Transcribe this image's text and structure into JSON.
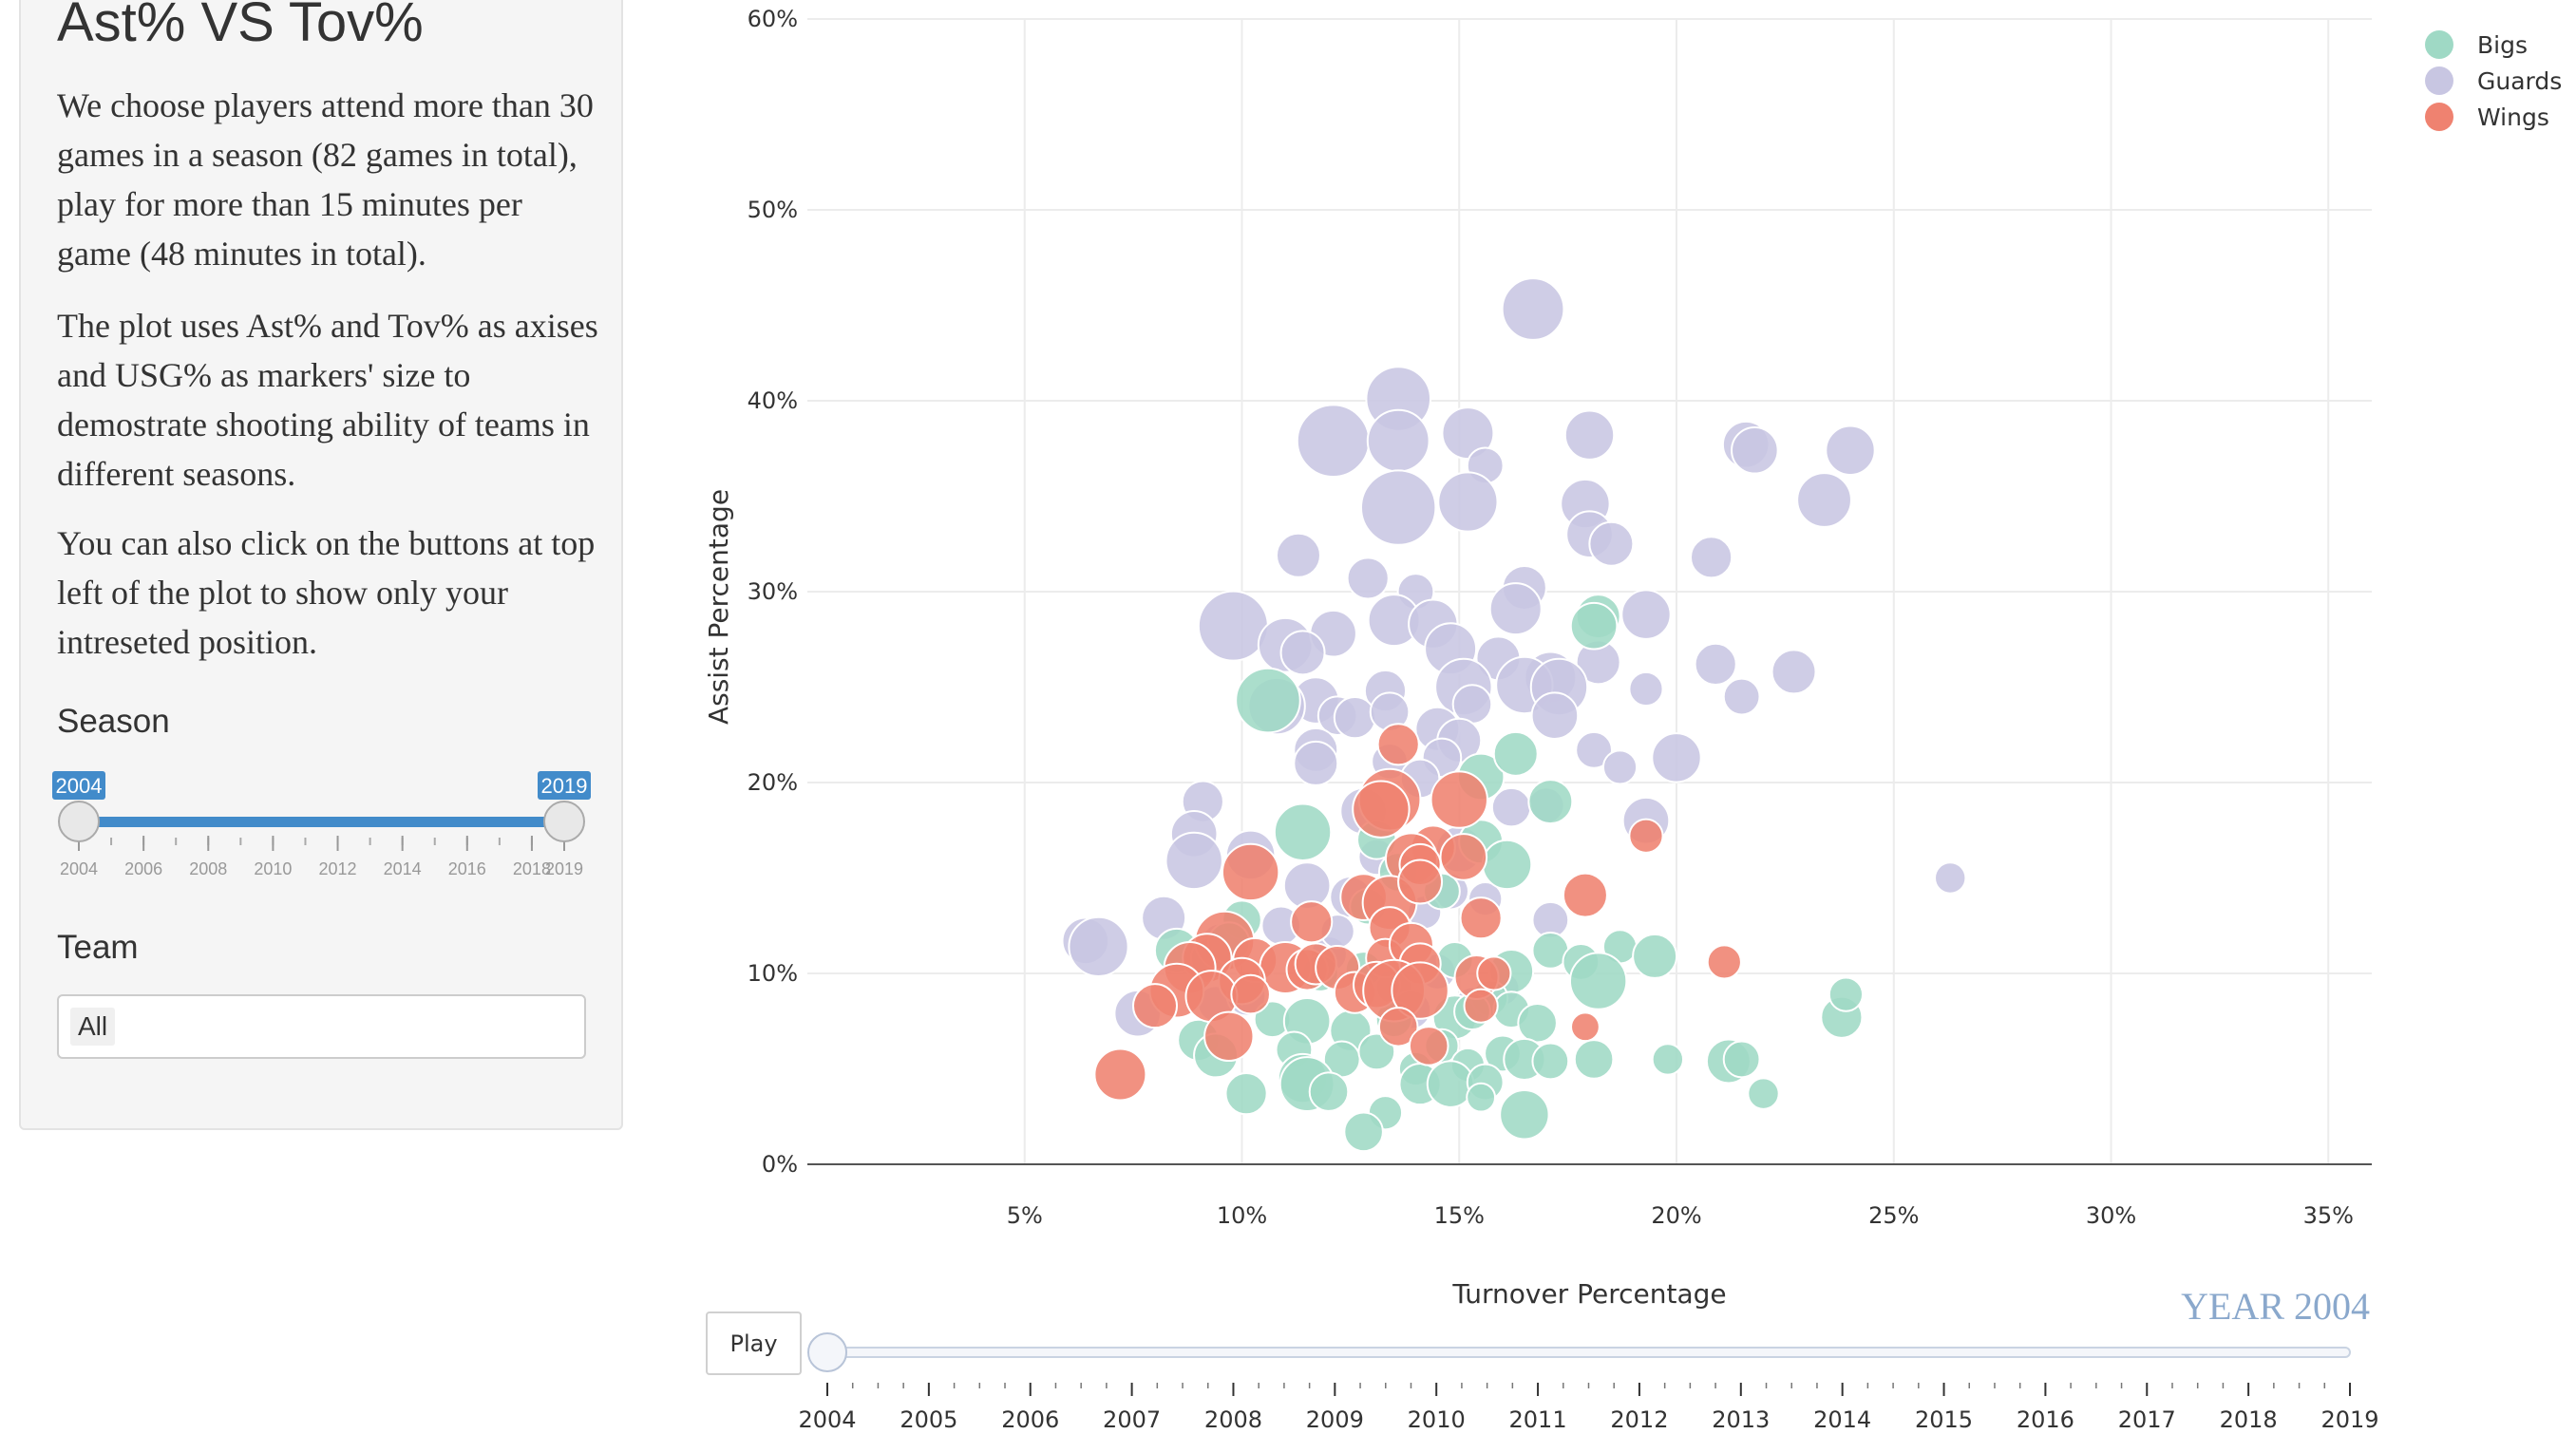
{
  "sidebar": {
    "title": "Ast% VS Tov%",
    "paragraphs": [
      "We choose players attend more than 30 games in a season (82 games in total), play for more than 15 minutes per game (48 minutes in total).",
      "The plot uses Ast% and Tov% as axises and USG% as markers' size to demostrate shooting ability of teams in different seasons.",
      "You can also click on the buttons at top left of the plot to show only your intreseted position."
    ],
    "season_label": "Season",
    "season_range": {
      "min": 2004,
      "max": 2019,
      "from": 2004,
      "to": 2019,
      "from_label": "2004",
      "to_label": "2019",
      "ticks": [
        "2004",
        "2006",
        "2008",
        "2010",
        "2012",
        "2014",
        "2016",
        "2018",
        "2019"
      ]
    },
    "team_label": "Team",
    "team_value": "All"
  },
  "colors": {
    "Bigs": "#9fd9c5",
    "Guards": "#c8c6e2",
    "Wings": "#ef8270",
    "slider": "#428bca",
    "year": "#8aa8cc"
  },
  "chart_data": {
    "type": "scatter",
    "xlabel": "Turnover Percentage",
    "ylabel": "Assist Percentage",
    "xlim": [
      0,
      36
    ],
    "ylim": [
      0,
      60
    ],
    "x_ticks": [
      "5%",
      "10%",
      "15%",
      "20%",
      "25%",
      "30%",
      "35%"
    ],
    "y_ticks": [
      "0%",
      "10%",
      "20%",
      "30%",
      "40%",
      "50%",
      "60%"
    ],
    "legend": [
      "Bigs",
      "Guards",
      "Wings"
    ],
    "legend_position": "top-right",
    "grid": true,
    "size_encodes": "USG%",
    "series": [
      {
        "name": "Guards",
        "points": [
          [
            16.7,
            44.8,
            24
          ],
          [
            13.6,
            40.1,
            25
          ],
          [
            12.1,
            37.9,
            28
          ],
          [
            13.6,
            37.9,
            24
          ],
          [
            15.2,
            38.3,
            20
          ],
          [
            18.0,
            38.2,
            19
          ],
          [
            21.6,
            37.7,
            18
          ],
          [
            21.8,
            37.4,
            18
          ],
          [
            24.0,
            37.4,
            19
          ],
          [
            15.6,
            36.6,
            14
          ],
          [
            13.6,
            34.4,
            29
          ],
          [
            15.2,
            34.7,
            23
          ],
          [
            17.9,
            34.6,
            19
          ],
          [
            23.4,
            34.8,
            21
          ],
          [
            18.0,
            33.0,
            18
          ],
          [
            18.5,
            32.5,
            17
          ],
          [
            11.3,
            31.9,
            17
          ],
          [
            20.8,
            31.8,
            16
          ],
          [
            14.0,
            30.0,
            14
          ],
          [
            12.9,
            30.7,
            16
          ],
          [
            16.5,
            30.2,
            17
          ],
          [
            16.3,
            29.1,
            20
          ],
          [
            19.3,
            28.8,
            19
          ],
          [
            9.8,
            28.2,
            27
          ],
          [
            11.0,
            27.2,
            21
          ],
          [
            12.1,
            27.8,
            18
          ],
          [
            13.5,
            28.5,
            20
          ],
          [
            14.4,
            28.3,
            19
          ],
          [
            15.9,
            26.5,
            17
          ],
          [
            14.8,
            27.0,
            20
          ],
          [
            11.4,
            26.8,
            17
          ],
          [
            18.2,
            26.3,
            17
          ],
          [
            20.9,
            26.2,
            16
          ],
          [
            22.7,
            25.8,
            17
          ],
          [
            17.1,
            25.5,
            20
          ],
          [
            16.5,
            25.1,
            22
          ],
          [
            15.1,
            25.0,
            22
          ],
          [
            17.3,
            25.0,
            22
          ],
          [
            19.3,
            24.9,
            13
          ],
          [
            21.5,
            24.5,
            14
          ],
          [
            13.3,
            24.8,
            16
          ],
          [
            11.7,
            24.3,
            18
          ],
          [
            10.8,
            24.0,
            22
          ],
          [
            12.2,
            23.5,
            15
          ],
          [
            12.6,
            23.4,
            16
          ],
          [
            13.4,
            23.7,
            15
          ],
          [
            15.3,
            24.1,
            15
          ],
          [
            17.2,
            23.5,
            18
          ],
          [
            14.5,
            22.8,
            17
          ],
          [
            15.0,
            22.2,
            17
          ],
          [
            11.7,
            21.7,
            17
          ],
          [
            11.7,
            21.0,
            17
          ],
          [
            18.1,
            21.7,
            14
          ],
          [
            18.7,
            20.8,
            13
          ],
          [
            20.0,
            21.3,
            19
          ],
          [
            13.4,
            21.1,
            14
          ],
          [
            14.6,
            21.3,
            15
          ],
          [
            14.1,
            20.2,
            15
          ],
          [
            17.0,
            18.8,
            14
          ],
          [
            16.2,
            18.7,
            15
          ],
          [
            19.3,
            18.0,
            18
          ],
          [
            9.1,
            19.0,
            16
          ],
          [
            8.9,
            17.3,
            18
          ],
          [
            8.9,
            15.9,
            22
          ],
          [
            10.2,
            16.2,
            19
          ],
          [
            12.8,
            18.5,
            18
          ],
          [
            13.1,
            16.1,
            14
          ],
          [
            15.0,
            16.5,
            18
          ],
          [
            11.5,
            14.6,
            18
          ],
          [
            12.5,
            14.0,
            16
          ],
          [
            14.8,
            14.3,
            14
          ],
          [
            15.6,
            13.9,
            13
          ],
          [
            8.2,
            12.9,
            17
          ],
          [
            10.9,
            12.5,
            15
          ],
          [
            6.4,
            11.7,
            18
          ],
          [
            6.7,
            11.4,
            23
          ],
          [
            9.5,
            11.6,
            15
          ],
          [
            12.0,
            11.0,
            14
          ],
          [
            17.1,
            12.8,
            14
          ],
          [
            26.3,
            15.0,
            12
          ],
          [
            7.6,
            7.9,
            18
          ],
          [
            9.4,
            8.4,
            14
          ],
          [
            10.1,
            8.8,
            15
          ],
          [
            13.5,
            9.3,
            14
          ],
          [
            13.9,
            8.1,
            15
          ],
          [
            14.5,
            10.1,
            14
          ],
          [
            15.3,
            8.4,
            13
          ],
          [
            16.0,
            9.2,
            13
          ],
          [
            12.2,
            12.2,
            13
          ],
          [
            14.2,
            13.2,
            13
          ]
        ]
      },
      {
        "name": "Bigs",
        "points": [
          [
            18.2,
            28.7,
            17
          ],
          [
            18.1,
            28.2,
            18
          ],
          [
            10.6,
            24.3,
            25
          ],
          [
            15.5,
            20.3,
            18
          ],
          [
            16.3,
            21.5,
            17
          ],
          [
            17.1,
            19.0,
            17
          ],
          [
            11.4,
            17.4,
            22
          ],
          [
            13.1,
            17.0,
            15
          ],
          [
            15.5,
            16.9,
            17
          ],
          [
            16.1,
            15.7,
            19
          ],
          [
            13.6,
            15.3,
            15
          ],
          [
            14.6,
            14.3,
            14
          ],
          [
            12.9,
            13.5,
            14
          ],
          [
            10.0,
            12.8,
            15
          ],
          [
            8.5,
            11.2,
            17
          ],
          [
            9.3,
            10.8,
            16
          ],
          [
            9.7,
            11.6,
            16
          ],
          [
            11.8,
            10.0,
            14
          ],
          [
            12.8,
            10.2,
            14
          ],
          [
            14.9,
            10.7,
            14
          ],
          [
            16.2,
            10.1,
            17
          ],
          [
            17.1,
            11.2,
            14
          ],
          [
            17.8,
            10.6,
            14
          ],
          [
            18.7,
            11.4,
            13
          ],
          [
            18.2,
            9.6,
            22
          ],
          [
            19.5,
            10.9,
            17
          ],
          [
            15.7,
            8.7,
            14
          ],
          [
            16.2,
            8.1,
            14
          ],
          [
            13.5,
            7.6,
            14
          ],
          [
            14.9,
            7.7,
            17
          ],
          [
            15.3,
            8.0,
            14
          ],
          [
            16.8,
            7.4,
            15
          ],
          [
            10.7,
            7.6,
            14
          ],
          [
            11.5,
            7.5,
            18
          ],
          [
            12.5,
            7.0,
            16
          ],
          [
            9.0,
            6.5,
            16
          ],
          [
            9.4,
            5.7,
            17
          ],
          [
            11.2,
            6.0,
            14
          ],
          [
            12.3,
            5.5,
            14
          ],
          [
            13.1,
            5.9,
            14
          ],
          [
            14.0,
            5.0,
            13
          ],
          [
            14.6,
            6.2,
            13
          ],
          [
            15.2,
            5.2,
            13
          ],
          [
            16.0,
            5.8,
            14
          ],
          [
            16.5,
            5.5,
            16
          ],
          [
            17.1,
            5.4,
            14
          ],
          [
            18.1,
            5.5,
            15
          ],
          [
            11.4,
            4.5,
            19
          ],
          [
            11.5,
            4.2,
            21
          ],
          [
            12.0,
            3.8,
            15
          ],
          [
            10.1,
            3.7,
            16
          ],
          [
            14.1,
            4.2,
            16
          ],
          [
            14.8,
            4.2,
            18
          ],
          [
            15.6,
            4.3,
            14
          ],
          [
            15.5,
            3.5,
            11
          ],
          [
            13.3,
            2.7,
            13
          ],
          [
            12.8,
            1.7,
            15
          ],
          [
            16.5,
            2.6,
            19
          ],
          [
            19.8,
            5.5,
            12
          ],
          [
            21.2,
            5.4,
            17
          ],
          [
            21.5,
            5.5,
            14
          ],
          [
            22.0,
            3.7,
            12
          ],
          [
            23.8,
            7.7,
            16
          ],
          [
            23.9,
            8.9,
            13
          ]
        ]
      },
      {
        "name": "Wings",
        "points": [
          [
            13.6,
            22.0,
            16
          ],
          [
            13.4,
            19.1,
            24
          ],
          [
            13.2,
            18.6,
            22
          ],
          [
            15.0,
            19.1,
            22
          ],
          [
            19.3,
            17.2,
            13
          ],
          [
            10.2,
            15.3,
            22
          ],
          [
            14.4,
            16.6,
            17
          ],
          [
            13.9,
            16.0,
            20
          ],
          [
            14.1,
            15.7,
            16
          ],
          [
            15.1,
            16.1,
            18
          ],
          [
            12.8,
            14.0,
            18
          ],
          [
            13.4,
            13.7,
            21
          ],
          [
            14.1,
            14.8,
            17
          ],
          [
            13.4,
            12.4,
            16
          ],
          [
            11.6,
            12.7,
            16
          ],
          [
            15.5,
            12.9,
            16
          ],
          [
            17.9,
            14.1,
            17
          ],
          [
            9.6,
            11.7,
            23
          ],
          [
            10.3,
            10.7,
            17
          ],
          [
            11.0,
            10.3,
            20
          ],
          [
            11.5,
            10.2,
            16
          ],
          [
            11.7,
            10.5,
            16
          ],
          [
            12.2,
            10.3,
            17
          ],
          [
            13.3,
            10.8,
            15
          ],
          [
            13.9,
            11.5,
            17
          ],
          [
            14.1,
            10.5,
            16
          ],
          [
            9.2,
            10.8,
            19
          ],
          [
            8.8,
            10.3,
            20
          ],
          [
            10.0,
            9.6,
            18
          ],
          [
            8.5,
            9.1,
            21
          ],
          [
            8.0,
            8.3,
            17
          ],
          [
            9.3,
            8.8,
            20
          ],
          [
            10.2,
            8.9,
            15
          ],
          [
            12.6,
            9.0,
            16
          ],
          [
            13.1,
            9.4,
            18
          ],
          [
            13.5,
            9.1,
            24
          ],
          [
            14.1,
            9.1,
            22
          ],
          [
            15.4,
            9.8,
            17
          ],
          [
            15.8,
            10.0,
            13
          ],
          [
            15.5,
            8.3,
            13
          ],
          [
            13.6,
            7.2,
            15
          ],
          [
            14.3,
            6.2,
            15
          ],
          [
            9.7,
            6.7,
            19
          ],
          [
            21.1,
            10.6,
            13
          ],
          [
            17.9,
            7.2,
            11
          ],
          [
            7.2,
            4.7,
            20
          ]
        ]
      }
    ]
  },
  "animation": {
    "play_label": "Play",
    "year_label": "YEAR 2004",
    "years": [
      "2004",
      "2005",
      "2006",
      "2007",
      "2008",
      "2009",
      "2010",
      "2011",
      "2012",
      "2013",
      "2014",
      "2015",
      "2016",
      "2017",
      "2018",
      "2019"
    ],
    "current_year": 2004
  }
}
